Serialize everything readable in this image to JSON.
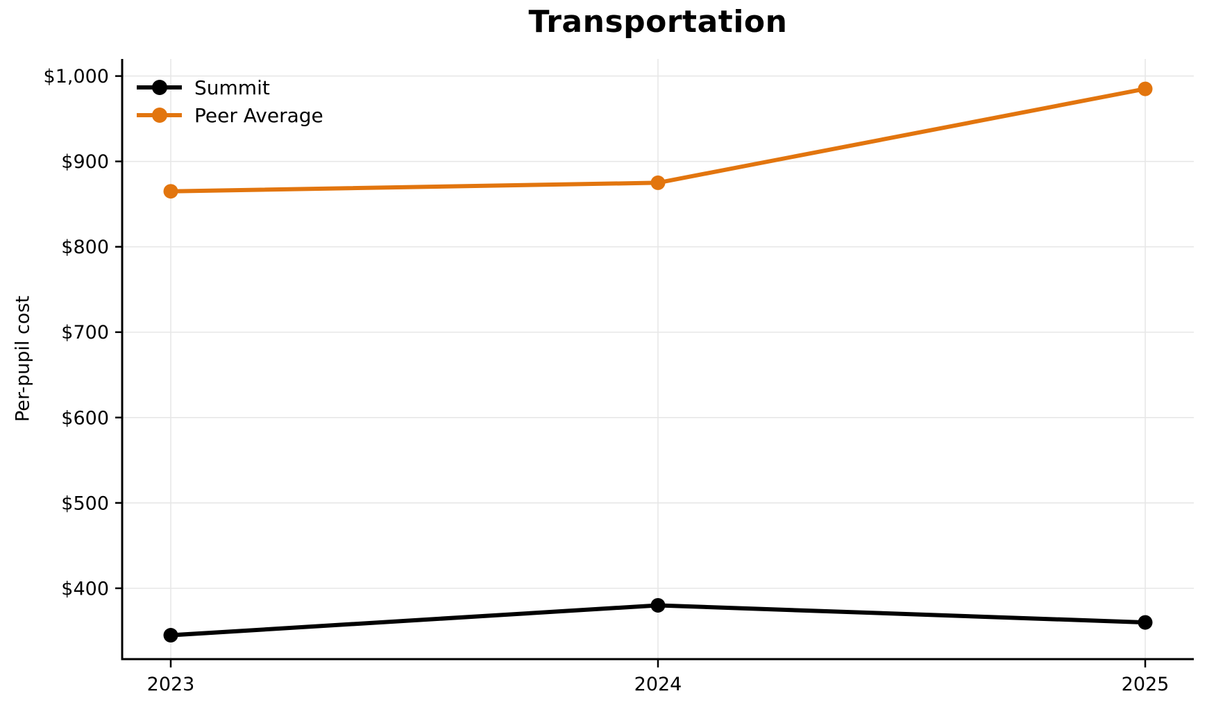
{
  "chart_data": {
    "type": "line",
    "title": "Transportation",
    "xlabel": "",
    "ylabel": "Per-pupil cost",
    "x": [
      2023,
      2024,
      2025
    ],
    "xtick_labels": [
      "2023",
      "2024",
      "2025"
    ],
    "series": [
      {
        "name": "Summit",
        "color": "#000000",
        "values": [
          345,
          380,
          360
        ]
      },
      {
        "name": "Peer Average",
        "color": "#E2750E",
        "values": [
          865,
          875,
          985
        ]
      }
    ],
    "ylim": [
      317,
      1020
    ],
    "yticks": [
      400,
      500,
      600,
      700,
      800,
      900,
      1000
    ],
    "ytick_labels": [
      "$400",
      "$500",
      "$600",
      "$700",
      "$800",
      "$900",
      "$1,000"
    ],
    "grid": true,
    "grid_color": "#E7E7E7",
    "axis_color": "#000000",
    "legend_position": "upper-left",
    "line_width": 6,
    "marker": "circle",
    "marker_radius": 10.5
  }
}
